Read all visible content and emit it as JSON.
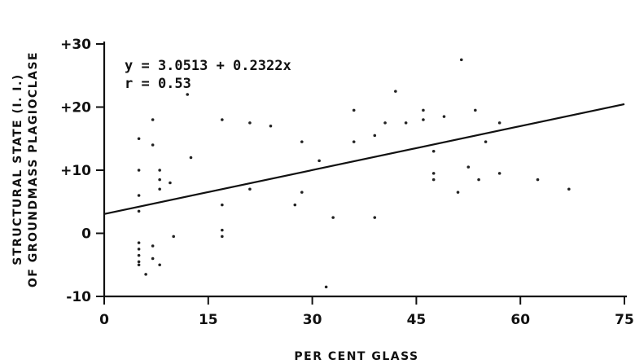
{
  "chart_data": {
    "type": "scatter",
    "xlabel": "PER CENT GLASS",
    "ylabel_lines": [
      "STRUCTURAL STATE (I. I.)",
      "OF GROUNDMASS PLAGIOCLASE"
    ],
    "xlim": [
      0,
      75
    ],
    "ylim": [
      -10,
      30
    ],
    "x_ticks": [
      0,
      15,
      30,
      45,
      60,
      75
    ],
    "x_tick_labels": [
      "0",
      "15",
      "30",
      "45",
      "60",
      "75"
    ],
    "y_ticks": [
      30,
      20,
      10,
      0,
      -10
    ],
    "y_tick_labels": [
      "+30",
      "+20",
      "+10",
      "0",
      "-10"
    ],
    "grid": false,
    "annotations": {
      "equation": "y = 3.0513 + 0.2322x",
      "r": "r = 0.53"
    },
    "fit_line": {
      "intercept": 3.0513,
      "slope": 0.2322
    },
    "points": [
      {
        "x": 5,
        "y": 15
      },
      {
        "x": 5,
        "y": 10
      },
      {
        "x": 5,
        "y": 6
      },
      {
        "x": 5,
        "y": 3.5
      },
      {
        "x": 5,
        "y": -1.5
      },
      {
        "x": 5,
        "y": -2.5
      },
      {
        "x": 5,
        "y": -3.5
      },
      {
        "x": 5,
        "y": -4.5
      },
      {
        "x": 5,
        "y": -5
      },
      {
        "x": 6,
        "y": -6.5
      },
      {
        "x": 7,
        "y": 18
      },
      {
        "x": 7,
        "y": 14
      },
      {
        "x": 7,
        "y": -2
      },
      {
        "x": 7,
        "y": -4
      },
      {
        "x": 8,
        "y": 10
      },
      {
        "x": 8,
        "y": 8.5
      },
      {
        "x": 8,
        "y": 7
      },
      {
        "x": 8,
        "y": -5
      },
      {
        "x": 9.5,
        "y": 8
      },
      {
        "x": 10,
        "y": -0.5
      },
      {
        "x": 12,
        "y": 22
      },
      {
        "x": 12.5,
        "y": 12
      },
      {
        "x": 17,
        "y": 18
      },
      {
        "x": 17,
        "y": 4.5
      },
      {
        "x": 17,
        "y": 0.5
      },
      {
        "x": 17,
        "y": -0.5
      },
      {
        "x": 21,
        "y": 17.5
      },
      {
        "x": 21,
        "y": 7
      },
      {
        "x": 24,
        "y": 17
      },
      {
        "x": 27.5,
        "y": 4.5
      },
      {
        "x": 28.5,
        "y": 14.5
      },
      {
        "x": 28.5,
        "y": 6.5
      },
      {
        "x": 31,
        "y": 11.5
      },
      {
        "x": 32,
        "y": -8.5
      },
      {
        "x": 33,
        "y": 2.5
      },
      {
        "x": 36,
        "y": 19.5
      },
      {
        "x": 36,
        "y": 14.5
      },
      {
        "x": 39,
        "y": 15.5
      },
      {
        "x": 39,
        "y": 2.5
      },
      {
        "x": 40.5,
        "y": 17.5
      },
      {
        "x": 42,
        "y": 22.5
      },
      {
        "x": 43.5,
        "y": 17.5
      },
      {
        "x": 46,
        "y": 19.5
      },
      {
        "x": 46,
        "y": 18
      },
      {
        "x": 47.5,
        "y": 13
      },
      {
        "x": 47.5,
        "y": 9.5
      },
      {
        "x": 47.5,
        "y": 8.5
      },
      {
        "x": 49,
        "y": 18.5
      },
      {
        "x": 51,
        "y": 6.5
      },
      {
        "x": 51.5,
        "y": 27.5
      },
      {
        "x": 52.5,
        "y": 10.5
      },
      {
        "x": 53.5,
        "y": 19.5
      },
      {
        "x": 54,
        "y": 8.5
      },
      {
        "x": 55,
        "y": 14.5
      },
      {
        "x": 57,
        "y": 17.5
      },
      {
        "x": 57,
        "y": 9.5
      },
      {
        "x": 62.5,
        "y": 8.5
      },
      {
        "x": 67,
        "y": 7
      }
    ]
  }
}
